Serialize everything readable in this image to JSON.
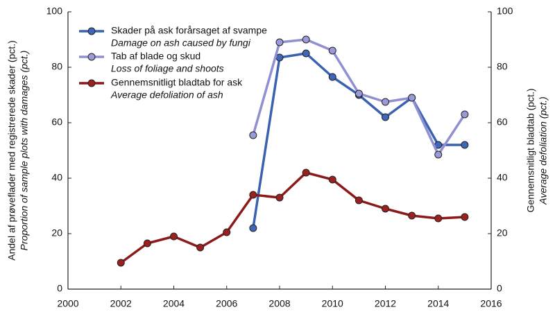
{
  "chart_data": {
    "type": "line",
    "ylabel": "Andel af prøveflader med registrerede skader (pct.)",
    "ylabel_sub": "Proportion of sample plots with damages (pct.)",
    "y2label": "Gennemsnitligt bladtab (pct.)",
    "y2label_sub": "Average defoliation (pct.)",
    "xlim": [
      2000,
      2016
    ],
    "xticks": [
      2000,
      2002,
      2004,
      2006,
      2008,
      2010,
      2012,
      2014,
      2016
    ],
    "ylim": [
      0,
      100
    ],
    "yticks": [
      0,
      20,
      40,
      60,
      80,
      100
    ],
    "y2lim": [
      0,
      100
    ],
    "y2ticks": [
      0,
      20,
      40,
      60,
      80,
      100
    ],
    "legend": "upper left",
    "series": [
      {
        "name": "Skader på ask forårsaget af svampe",
        "subname": "Damage on ash caused by fungi",
        "color": "#3a62b0",
        "marker_color": "#3f66b8",
        "x": [
          2007,
          2008,
          2009,
          2010,
          2011,
          2012,
          2013,
          2014,
          2015
        ],
        "values": [
          22,
          83.5,
          85,
          76.5,
          70,
          62,
          69,
          52,
          52
        ]
      },
      {
        "name": "Tab af blade og skud",
        "subname": "Loss of foliage and shoots",
        "color": "#8f8fd2",
        "marker_color": "#9a9ad8",
        "x": [
          2007,
          2008,
          2009,
          2010,
          2011,
          2012,
          2013,
          2014,
          2015
        ],
        "values": [
          55.5,
          89,
          90,
          86,
          70.5,
          67.5,
          69,
          48.5,
          63
        ]
      },
      {
        "name": "Gennemsnitligt bladtab for ask",
        "subname": "Average defoliation of ash",
        "color": "#8b1a1a",
        "marker_color": "#9c2020",
        "axis": "y2",
        "x": [
          2002,
          2003,
          2004,
          2005,
          2006,
          2007,
          2008,
          2009,
          2010,
          2011,
          2012,
          2013,
          2014,
          2015
        ],
        "values": [
          9.5,
          16.5,
          19,
          15,
          20.5,
          34,
          33,
          42,
          39.5,
          32,
          29,
          26.5,
          25.5,
          26
        ]
      }
    ]
  }
}
